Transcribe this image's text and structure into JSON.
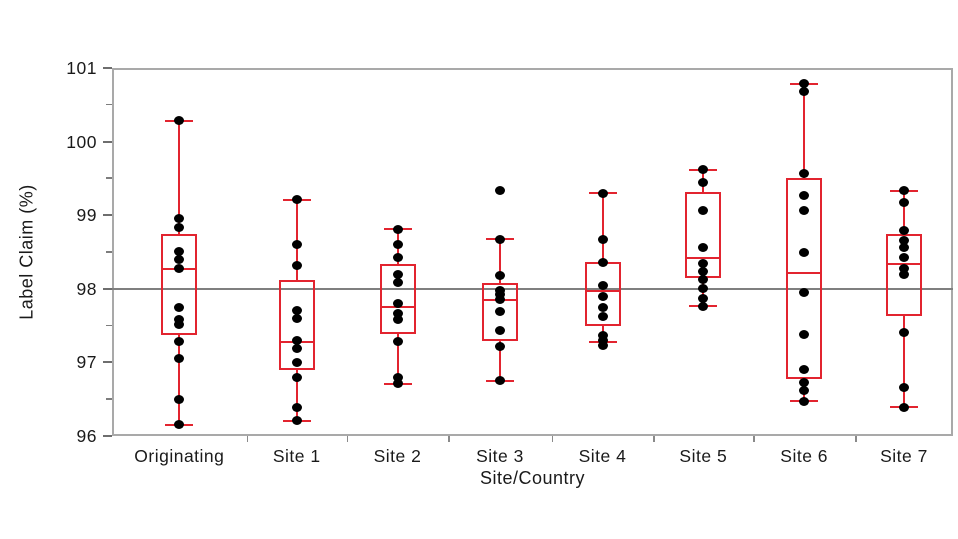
{
  "chart_data": {
    "type": "box",
    "title": "",
    "xlabel": "Site/Country",
    "ylabel": "Label Claim (%)",
    "ylim": [
      96,
      101
    ],
    "y_major_ticks": [
      96,
      97,
      98,
      99,
      100,
      101
    ],
    "y_minor_step": 0.5,
    "grid": false,
    "legend": "none",
    "reference_line": 98,
    "box_color": "#e2242f",
    "point_color": "#000000",
    "reference_line_color": "#7f7f7f",
    "categories": [
      "Originating",
      "Site 1",
      "Site 2",
      "Site 3",
      "Site 4",
      "Site 5",
      "Site 6",
      "Site 7"
    ],
    "groups": [
      {
        "label": "Originating",
        "q1": 97.37,
        "median": 98.27,
        "q3": 98.74,
        "whisker_low": 96.15,
        "whisker_high": 100.28,
        "points": [
          100.28,
          98.95,
          98.83,
          98.51,
          98.4,
          98.27,
          97.75,
          97.58,
          97.52,
          97.28,
          97.05,
          96.49,
          96.15
        ]
      },
      {
        "label": "Site 1",
        "q1": 96.89,
        "median": 97.28,
        "q3": 98.12,
        "whisker_low": 96.21,
        "whisker_high": 99.21,
        "points": [
          99.21,
          98.6,
          98.31,
          97.7,
          97.59,
          97.3,
          97.19,
          97.0,
          96.8,
          96.39,
          96.21
        ]
      },
      {
        "label": "Site 2",
        "q1": 97.39,
        "median": 97.75,
        "q3": 98.34,
        "whisker_low": 96.71,
        "whisker_high": 98.81,
        "points": [
          98.81,
          98.6,
          98.42,
          98.19,
          98.08,
          97.8,
          97.66,
          97.58,
          97.29,
          96.8,
          96.71
        ]
      },
      {
        "label": "Site 3",
        "q1": 97.29,
        "median": 97.85,
        "q3": 98.08,
        "whisker_low": 96.75,
        "whisker_high": 98.67,
        "points": [
          99.33,
          98.67,
          98.18,
          97.98,
          97.92,
          97.86,
          97.69,
          97.43,
          97.22,
          96.75
        ]
      },
      {
        "label": "Site 4",
        "q1": 97.5,
        "median": 97.97,
        "q3": 98.36,
        "whisker_low": 97.28,
        "whisker_high": 99.3,
        "points": [
          99.3,
          98.67,
          98.36,
          98.05,
          97.9,
          97.74,
          97.62,
          97.37,
          97.3,
          97.23
        ]
      },
      {
        "label": "Site 5",
        "q1": 98.15,
        "median": 98.42,
        "q3": 99.32,
        "whisker_low": 97.76,
        "whisker_high": 99.62,
        "points": [
          99.62,
          99.45,
          99.07,
          98.56,
          98.35,
          98.23,
          98.12,
          98.01,
          97.87,
          97.76
        ]
      },
      {
        "label": "Site 6",
        "q1": 96.78,
        "median": 98.21,
        "q3": 99.5,
        "whisker_low": 96.47,
        "whisker_high": 100.78,
        "points": [
          100.79,
          100.68,
          99.57,
          99.27,
          99.06,
          98.5,
          97.95,
          97.38,
          96.9,
          96.73,
          96.62,
          96.47
        ]
      },
      {
        "label": "Site 7",
        "q1": 97.63,
        "median": 98.34,
        "q3": 98.75,
        "whisker_low": 96.39,
        "whisker_high": 99.33,
        "points": [
          99.33,
          99.17,
          98.79,
          98.65,
          98.56,
          98.42,
          98.28,
          98.19,
          97.41,
          96.66,
          96.39
        ]
      }
    ]
  }
}
